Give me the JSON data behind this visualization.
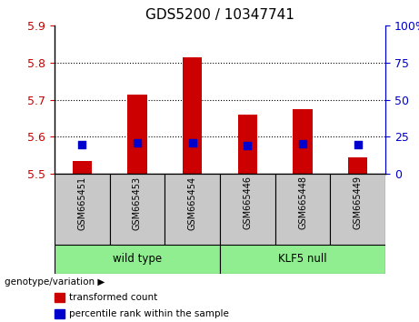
{
  "title": "GDS5200 / 10347741",
  "samples": [
    "GSM665451",
    "GSM665453",
    "GSM665454",
    "GSM665446",
    "GSM665448",
    "GSM665449"
  ],
  "red_bar_bottom": 5.5,
  "red_bar_tops": [
    5.535,
    5.715,
    5.815,
    5.66,
    5.675,
    5.545
  ],
  "blue_marker_y": [
    5.578,
    5.585,
    5.584,
    5.577,
    5.582,
    5.578
  ],
  "ylim": [
    5.5,
    5.9
  ],
  "yticks_left": [
    5.5,
    5.6,
    5.7,
    5.8,
    5.9
  ],
  "yticks_right_vals": [
    0,
    25,
    50,
    75,
    100
  ],
  "yticks_right_labels": [
    "0",
    "25",
    "50",
    "75",
    "100%"
  ],
  "left_tick_color": "#cc0000",
  "right_tick_color": "#0000cc",
  "bar_color": "#cc0000",
  "blue_color": "#0000cc",
  "title_fontsize": 11,
  "bar_width": 0.35,
  "blue_marker_size": 40,
  "genotype_label": "genotype/variation",
  "wt_label": "wild type",
  "klf_label": "KLF5 null",
  "legend_items": [
    "transformed count",
    "percentile rank within the sample"
  ],
  "cell_color": "#c8c8c8",
  "group_color": "#90EE90"
}
